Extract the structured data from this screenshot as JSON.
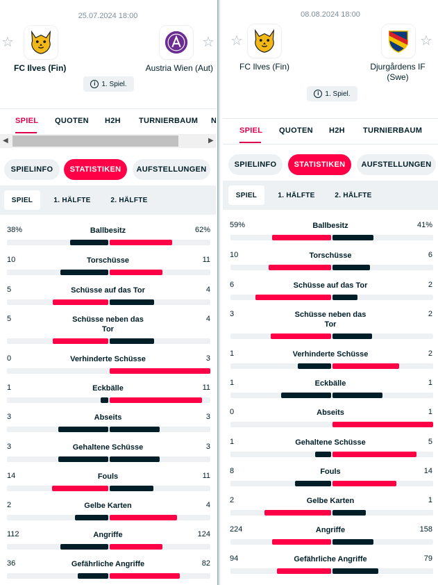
{
  "matches": [
    {
      "date": "25.07.2024 18:00",
      "home": {
        "name": "FC Ilves (Fin)",
        "logo": "ilves-lynx-logo",
        "bold": true
      },
      "away": {
        "name": "Austria Wien (Aut)",
        "logo": "austria-wien-logo",
        "bold": false
      },
      "info": "1. Spiel.",
      "tabs": [
        "SPIEL",
        "QUOTEN",
        "H2H",
        "TURNIERBAUM",
        "N"
      ],
      "subtabs": [
        "SPIELINFO",
        "STATISTIKEN",
        "AUFSTELLUNGEN"
      ],
      "periods": [
        "SPIEL",
        "1. HÄLFTE",
        "2. HÄLFTE"
      ],
      "stats": [
        {
          "name": "Ballbesitz",
          "home": "38%",
          "away": "62%",
          "hv": 38,
          "av": 62
        },
        {
          "name": "Torschüsse",
          "home": "10",
          "away": "11",
          "hv": 10,
          "av": 11
        },
        {
          "name": "Schüsse auf das Tor",
          "home": "5",
          "away": "4",
          "hv": 5,
          "av": 4
        },
        {
          "name": "Schüsse neben das Tor",
          "home": "5",
          "away": "4",
          "hv": 5,
          "av": 4
        },
        {
          "name": "Verhinderte Schüsse",
          "home": "0",
          "away": "3",
          "hv": 0,
          "av": 3
        },
        {
          "name": "Eckbälle",
          "home": "1",
          "away": "11",
          "hv": 1,
          "av": 11
        },
        {
          "name": "Abseits",
          "home": "3",
          "away": "3",
          "hv": 3,
          "av": 3
        },
        {
          "name": "Gehaltene Schüsse",
          "home": "3",
          "away": "3",
          "hv": 3,
          "av": 3
        },
        {
          "name": "Fouls",
          "home": "14",
          "away": "11",
          "hv": 14,
          "av": 11
        },
        {
          "name": "Gelbe Karten",
          "home": "2",
          "away": "4",
          "hv": 2,
          "av": 4
        },
        {
          "name": "Angriffe",
          "home": "112",
          "away": "124",
          "hv": 112,
          "av": 124
        },
        {
          "name": "Gefährliche Angriffe",
          "home": "36",
          "away": "82",
          "hv": 36,
          "av": 82
        }
      ]
    },
    {
      "date": "08.08.2024 18:00",
      "home": {
        "name": "FC Ilves (Fin)",
        "logo": "ilves-lynx-logo",
        "bold": false
      },
      "away": {
        "name": "Djurgårdens IF (Swe)",
        "logo": "djurgarden-logo",
        "bold": false
      },
      "info": "1. Spiel.",
      "tabs": [
        "SPIEL",
        "QUOTEN",
        "H2H",
        "TURNIERBAUM"
      ],
      "subtabs": [
        "SPIELINFO",
        "STATISTIKEN",
        "AUFSTELLUNGEN"
      ],
      "periods": [
        "SPIEL",
        "1. HÄLFTE",
        "2. HÄLFTE"
      ],
      "stats": [
        {
          "name": "Ballbesitz",
          "home": "59%",
          "away": "41%",
          "hv": 59,
          "av": 41
        },
        {
          "name": "Torschüsse",
          "home": "10",
          "away": "6",
          "hv": 10,
          "av": 6
        },
        {
          "name": "Schüsse auf das Tor",
          "home": "6",
          "away": "2",
          "hv": 6,
          "av": 2
        },
        {
          "name": "Schüsse neben das Tor",
          "home": "3",
          "away": "2",
          "hv": 3,
          "av": 2
        },
        {
          "name": "Verhinderte Schüsse",
          "home": "1",
          "away": "2",
          "hv": 1,
          "av": 2
        },
        {
          "name": "Eckbälle",
          "home": "1",
          "away": "1",
          "hv": 1,
          "av": 1
        },
        {
          "name": "Abseits",
          "home": "0",
          "away": "1",
          "hv": 0,
          "av": 1
        },
        {
          "name": "Gehaltene Schüsse",
          "home": "1",
          "away": "5",
          "hv": 1,
          "av": 5
        },
        {
          "name": "Fouls",
          "home": "8",
          "away": "14",
          "hv": 8,
          "av": 14
        },
        {
          "name": "Gelbe Karten",
          "home": "2",
          "away": "1",
          "hv": 2,
          "av": 1
        },
        {
          "name": "Angriffe",
          "home": "224",
          "away": "158",
          "hv": 224,
          "av": 158
        },
        {
          "name": "Gefährliche Angriffe",
          "home": "94",
          "away": "79",
          "hv": 94,
          "av": 79
        }
      ]
    }
  ],
  "colors": {
    "accent": "#ff0046",
    "accent_text": "#e0004d",
    "dark": "#001e28",
    "track": "#eef1f3"
  },
  "icons": {
    "favorite": "star-outline-icon",
    "info": "info-icon"
  }
}
